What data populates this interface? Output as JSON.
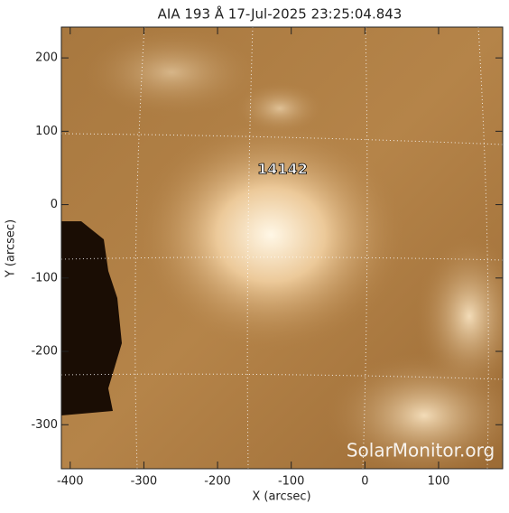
{
  "chart_data": {
    "type": "image",
    "title": "AIA 193 Å 17-Jul-2025 23:25:04.843",
    "xlabel": "X (arcsec)",
    "ylabel": "Y (arcsec)",
    "xlim": [
      -412,
      187
    ],
    "ylim": [
      -360,
      242
    ],
    "xticks": [
      -400,
      -300,
      -200,
      -100,
      0,
      100
    ],
    "yticks": [
      -300,
      -200,
      -100,
      0,
      100,
      200
    ],
    "annotations": [
      "14142"
    ],
    "watermark": "SolarMonitor.org"
  }
}
